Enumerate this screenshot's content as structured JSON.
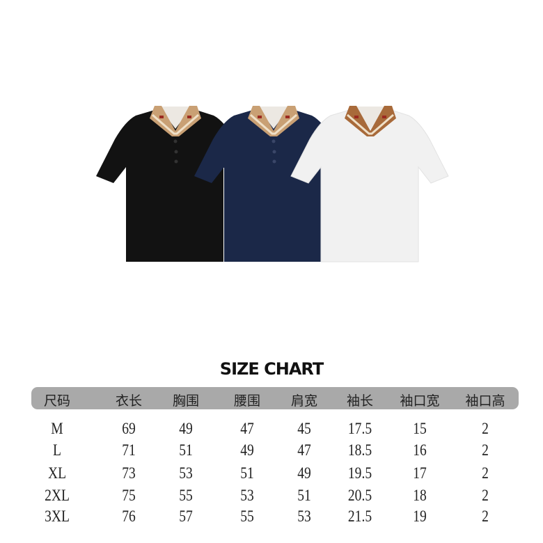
{
  "products": [
    {
      "name": "black",
      "color": "#121212",
      "collar": "#c9a074"
    },
    {
      "name": "navy",
      "color": "#1b2848",
      "collar": "#c9a074"
    },
    {
      "name": "white",
      "color": "#f1f1f1",
      "collar": "#a86a3a"
    }
  ],
  "size_chart": {
    "title": "SIZE CHART",
    "header_color": "#a9a9a9",
    "headers": [
      "尺码",
      "衣长",
      "胸围",
      "腰围",
      "肩宽",
      "袖长",
      "袖口宽",
      "袖口高"
    ],
    "rows": [
      [
        "M",
        "69",
        "49",
        "47",
        "45",
        "17.5",
        "15",
        "2"
      ],
      [
        "L",
        "71",
        "51",
        "49",
        "47",
        "18.5",
        "16",
        "2"
      ],
      [
        "XL",
        "73",
        "53",
        "51",
        "49",
        "19.5",
        "17",
        "2"
      ],
      [
        "2XL",
        "75",
        "55",
        "53",
        "51",
        "20.5",
        "18",
        "2"
      ],
      [
        "3XL",
        "76",
        "57",
        "55",
        "53",
        "21.5",
        "19",
        "2"
      ]
    ]
  }
}
